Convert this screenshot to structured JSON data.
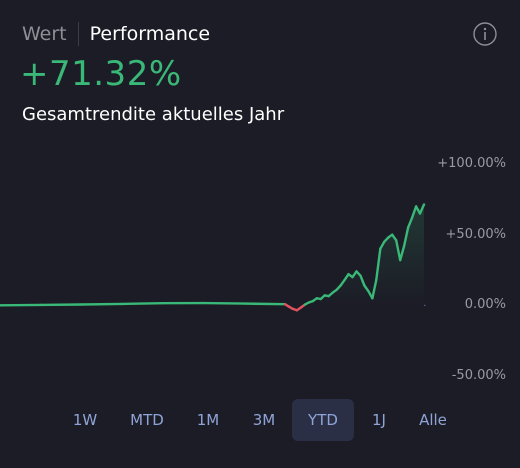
{
  "tabs": {
    "wert": "Wert",
    "performance": "Performance"
  },
  "performance": {
    "value": "+71.32%",
    "subtitle": "Gesamtrendite aktuelles Jahr"
  },
  "colors": {
    "positive": "#3ab877",
    "negative": "#e0545f",
    "background": "#1c1c26",
    "accent": "#8fa4d6"
  },
  "chart_data": {
    "type": "line",
    "series_name": "",
    "y_ticks": [
      "+100.00%",
      "+50.00%",
      "0.00%",
      "-50.00%"
    ],
    "ylim": [
      -50,
      100
    ],
    "baseline": 0,
    "y": [
      0,
      0.3,
      0.6,
      1.0,
      1.5,
      1.6,
      1.2,
      0.8,
      -1.0,
      -2.5,
      -3.5,
      -1.5,
      0.5,
      2.0,
      3.0,
      5.0,
      4.5,
      7.0,
      6.5,
      9.0,
      11.0,
      14.0,
      18.0,
      22.0,
      20.0,
      24.0,
      21.0,
      14.0,
      10.0,
      5.0,
      18.0,
      40.0,
      45.0,
      48.0,
      50.0,
      46.0,
      32.0,
      42.0,
      55.0,
      62.0,
      70.0,
      65.0,
      71.32
    ],
    "grid": false
  },
  "ranges": {
    "items": [
      "1W",
      "MTD",
      "1M",
      "3M",
      "YTD",
      "1J",
      "Alle"
    ],
    "selected": "YTD"
  }
}
